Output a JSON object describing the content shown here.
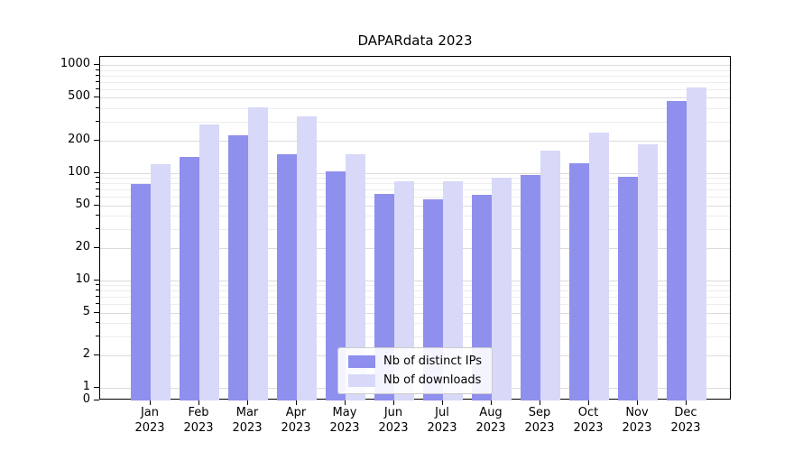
{
  "chart_data": {
    "type": "bar",
    "title": "DAPARdata 2023",
    "categories": [
      "Jan",
      "Feb",
      "Mar",
      "Apr",
      "May",
      "Jun",
      "Jul",
      "Aug",
      "Sep",
      "Oct",
      "Nov",
      "Dec"
    ],
    "year_label": "2023",
    "series": [
      {
        "name": "Nb of distinct IPs",
        "color": "#8f8fee",
        "values": [
          78,
          140,
          225,
          150,
          103,
          64,
          57,
          63,
          96,
          122,
          92,
          470
        ]
      },
      {
        "name": "Nb of downloads",
        "color": "#d8d8f8",
        "values": [
          120,
          280,
          410,
          335,
          150,
          84,
          83,
          91,
          160,
          238,
          186,
          625
        ]
      }
    ],
    "yscale": "symlog",
    "yticks": [
      0,
      1,
      2,
      5,
      10,
      20,
      50,
      100,
      200,
      500,
      1000
    ],
    "ylim": [
      0,
      1200
    ],
    "grid": true,
    "legend_position": "lower center",
    "xlabel": "",
    "ylabel": ""
  }
}
